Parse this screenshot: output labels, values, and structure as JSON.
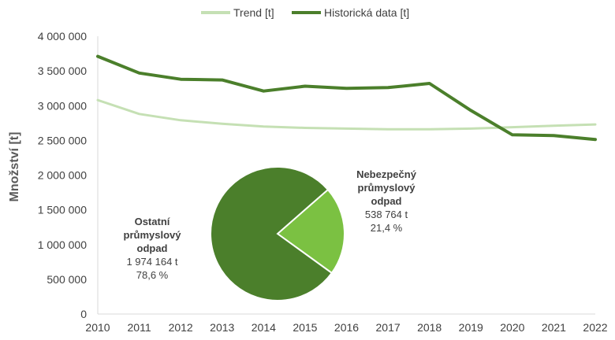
{
  "chart_data": [
    {
      "type": "line",
      "title": "",
      "xlabel": "",
      "ylabel": "Množství [t]",
      "x": [
        "2010",
        "2011",
        "2012",
        "2013",
        "2014",
        "2015",
        "2016",
        "2017",
        "2018",
        "2019",
        "2020",
        "2021",
        "2022"
      ],
      "ylim": [
        0,
        4000000
      ],
      "y_ticks": [
        0,
        500000,
        1000000,
        1500000,
        2000000,
        2500000,
        3000000,
        3500000,
        4000000
      ],
      "y_tick_labels": [
        "0",
        "500 000",
        "1 000 000",
        "1 500 000",
        "2 000 000",
        "2 500 000",
        "3 000 000",
        "3 500 000",
        "4 000 000"
      ],
      "grid": false,
      "legend_position": "top-center",
      "series": [
        {
          "name": "Trend [t]",
          "color": "#c5e0b4",
          "values": [
            3080000,
            2880000,
            2790000,
            2740000,
            2700000,
            2680000,
            2670000,
            2660000,
            2660000,
            2670000,
            2690000,
            2710000,
            2730000
          ]
        },
        {
          "name": "Historická data [t]",
          "color": "#4b7f2b",
          "values": [
            3710000,
            3470000,
            3380000,
            3370000,
            3210000,
            3280000,
            3250000,
            3260000,
            3320000,
            2930000,
            2580000,
            2570000,
            2513000
          ]
        }
      ]
    },
    {
      "type": "pie",
      "title": "",
      "slices": [
        {
          "label_lines": [
            "Nebezpečný",
            "průmyslový",
            "odpad"
          ],
          "value_text": "538 764 t",
          "percent_text": "21,4 %",
          "value": 538764,
          "percent": 21.4,
          "color": "#7bc142"
        },
        {
          "label_lines": [
            "Ostatní",
            "průmyslový",
            "odpad"
          ],
          "value_text": "1 974 164 t",
          "percent_text": "78,6 %",
          "value": 1974164,
          "percent": 78.6,
          "color": "#4b7f2b"
        }
      ]
    }
  ]
}
